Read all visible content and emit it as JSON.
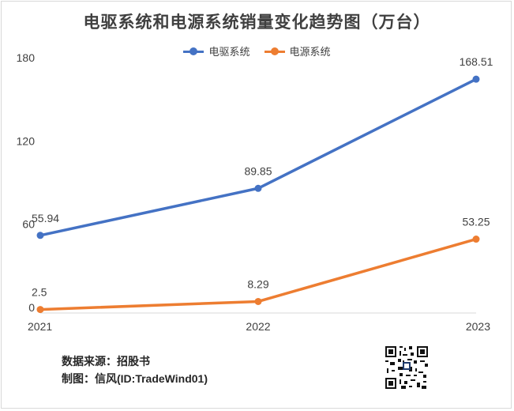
{
  "chart_data": {
    "type": "line",
    "title": "电驱系统和电源系统销量变化趋势图（万台）",
    "x": [
      "2021",
      "2022",
      "2023"
    ],
    "series": [
      {
        "name": "电驱系统",
        "values": [
          55.94,
          89.85,
          168.51
        ],
        "labels": [
          "55.94",
          "89.85",
          "168.51"
        ],
        "color": "#4472C4"
      },
      {
        "name": "电源系统",
        "values": [
          2.5,
          8.29,
          53.25
        ],
        "labels": [
          "2.5",
          "8.29",
          "53.25"
        ],
        "color": "#ED7D31"
      }
    ],
    "yticks": [
      "0",
      "60",
      "120",
      "180"
    ],
    "ylim": [
      0,
      180
    ],
    "grid": false,
    "legend": "top-center",
    "xlabel": "",
    "ylabel": ""
  },
  "footer": {
    "source_line": "数据来源：招股书",
    "author_line": "制图：信风(ID:TradeWind01)"
  }
}
